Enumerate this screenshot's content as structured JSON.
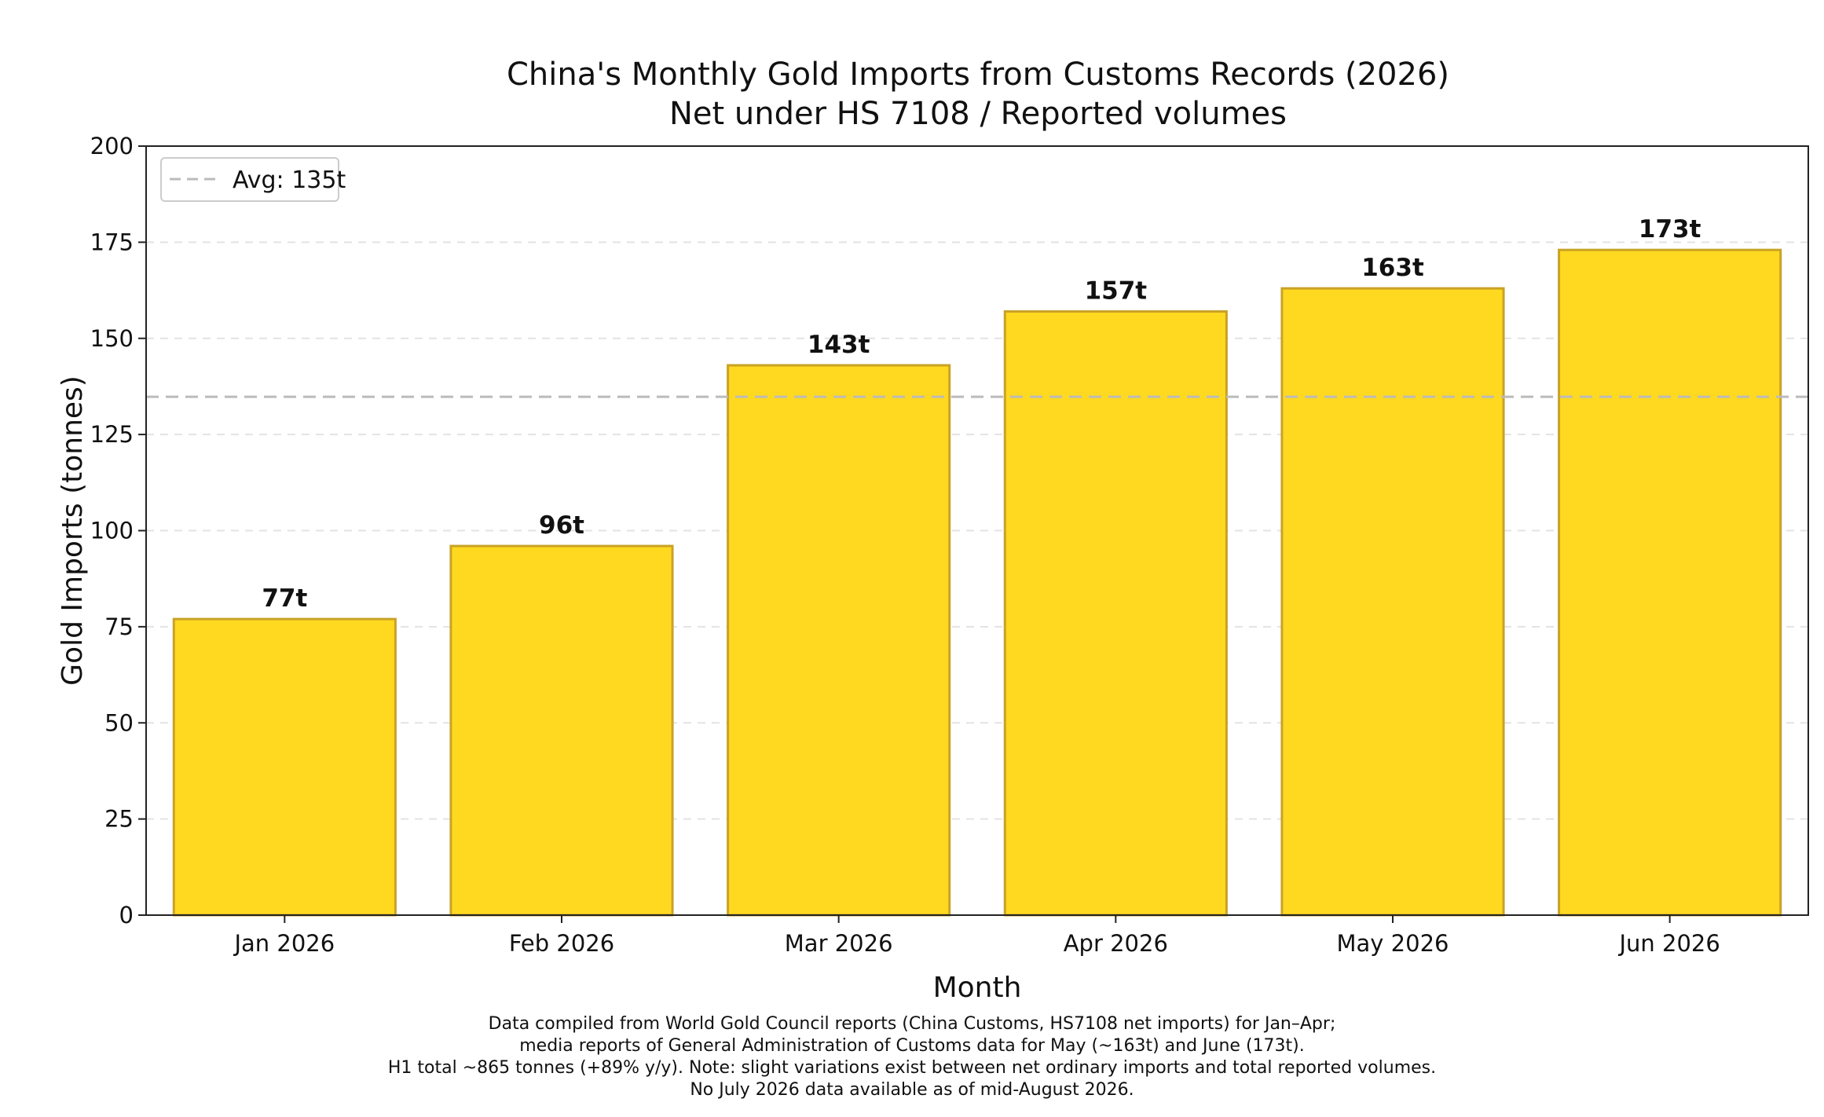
{
  "chart_data": {
    "type": "bar",
    "title": "China's Monthly Gold Imports from Customs Records (2026)",
    "subtitle": "Net under HS 7108 / Reported volumes",
    "xlabel": "Month",
    "ylabel": "Gold Imports (tonnes)",
    "categories": [
      "Jan 2026",
      "Feb 2026",
      "Mar 2026",
      "Apr 2026",
      "May 2026",
      "Jun 2026"
    ],
    "values": [
      77,
      96,
      143,
      157,
      163,
      173
    ],
    "data_labels": [
      "77t",
      "96t",
      "143t",
      "157t",
      "163t",
      "173t"
    ],
    "ylim": [
      0,
      200
    ],
    "yticks": [
      0,
      25,
      50,
      75,
      100,
      125,
      150,
      175,
      200
    ],
    "grid": "y-dashed",
    "reference_line": {
      "label": "Avg: 135t",
      "value": 134.8
    },
    "legend_position": "top-left",
    "colors": {
      "bar_fill": "#ffd91f",
      "bar_edge": "#c9a227",
      "average_line": "#bbbbbb",
      "grid": "#e3e3e3"
    }
  },
  "footnote": {
    "lines": [
      "Data compiled from World Gold Council reports (China Customs, HS7108 net imports) for Jan–Apr;",
      "media reports of General Administration of Customs data for May (~163t) and June (173t).",
      "H1 total ~865 tonnes (+89% y/y). Note: slight variations exist between net ordinary imports and total reported volumes.",
      "No July 2026 data available as of mid-August 2026."
    ]
  }
}
